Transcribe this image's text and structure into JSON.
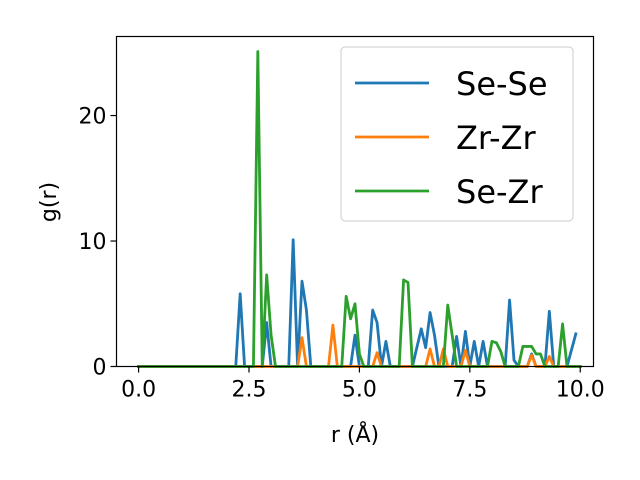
{
  "chart_data": {
    "type": "line",
    "title": "",
    "xlabel": "r (Å)",
    "ylabel": "g(r)",
    "xlim": [
      -0.5,
      10.3
    ],
    "ylim": [
      0,
      26.3
    ],
    "xticks": [
      0.0,
      2.5,
      5.0,
      7.5,
      10.0
    ],
    "xtick_labels": [
      "0.0",
      "2.5",
      "5.0",
      "7.5",
      "10.0"
    ],
    "yticks": [
      0,
      10,
      20
    ],
    "ytick_labels": [
      "0",
      "10",
      "20"
    ],
    "grid": false,
    "legend_position": "top-right",
    "series": [
      {
        "name": "Se-Se",
        "color": "#1f77b4",
        "points": [
          [
            0.0,
            0
          ],
          [
            2.2,
            0
          ],
          [
            2.3,
            5.8
          ],
          [
            2.4,
            0
          ],
          [
            2.8,
            0
          ],
          [
            2.9,
            3.5
          ],
          [
            3.0,
            0
          ],
          [
            3.4,
            0
          ],
          [
            3.5,
            10.1
          ],
          [
            3.6,
            0
          ],
          [
            3.7,
            6.8
          ],
          [
            3.8,
            4.5
          ],
          [
            3.9,
            0
          ],
          [
            4.8,
            0
          ],
          [
            4.9,
            2.5
          ],
          [
            5.0,
            0
          ],
          [
            5.2,
            0
          ],
          [
            5.3,
            4.5
          ],
          [
            5.4,
            3.5
          ],
          [
            5.5,
            0
          ],
          [
            5.6,
            2.0
          ],
          [
            5.7,
            0
          ],
          [
            6.2,
            0
          ],
          [
            6.4,
            3.0
          ],
          [
            6.5,
            1.5
          ],
          [
            6.6,
            4.3
          ],
          [
            6.7,
            2.5
          ],
          [
            6.8,
            0
          ],
          [
            7.1,
            0
          ],
          [
            7.2,
            2.4
          ],
          [
            7.3,
            0
          ],
          [
            7.4,
            2.8
          ],
          [
            7.5,
            0
          ],
          [
            7.6,
            2.0
          ],
          [
            7.7,
            0
          ],
          [
            7.8,
            2.0
          ],
          [
            7.9,
            0
          ],
          [
            8.3,
            0
          ],
          [
            8.4,
            5.3
          ],
          [
            8.5,
            0.5
          ],
          [
            8.6,
            0
          ],
          [
            8.8,
            0
          ],
          [
            8.9,
            1.0
          ],
          [
            9.0,
            0
          ],
          [
            9.2,
            0
          ],
          [
            9.3,
            4.4
          ],
          [
            9.4,
            0
          ],
          [
            9.7,
            0
          ],
          [
            9.9,
            2.6
          ]
        ]
      },
      {
        "name": "Zr-Zr",
        "color": "#ff7f0e",
        "points": [
          [
            0.0,
            0
          ],
          [
            3.6,
            0
          ],
          [
            3.7,
            2.3
          ],
          [
            3.8,
            0
          ],
          [
            4.3,
            0
          ],
          [
            4.4,
            3.3
          ],
          [
            4.5,
            0
          ],
          [
            5.3,
            0
          ],
          [
            5.4,
            1.1
          ],
          [
            5.5,
            0
          ],
          [
            6.5,
            0
          ],
          [
            6.6,
            1.4
          ],
          [
            6.7,
            0
          ],
          [
            6.8,
            0
          ],
          [
            6.9,
            1.4
          ],
          [
            7.0,
            0
          ],
          [
            7.3,
            0
          ],
          [
            7.4,
            1.3
          ],
          [
            7.5,
            0
          ],
          [
            8.8,
            0
          ],
          [
            8.9,
            0.9
          ],
          [
            9.0,
            0
          ],
          [
            9.2,
            0
          ],
          [
            9.3,
            0.8
          ],
          [
            9.4,
            0
          ],
          [
            10.0,
            0
          ]
        ]
      },
      {
        "name": "Se-Zr",
        "color": "#2ca02c",
        "points": [
          [
            0.0,
            0
          ],
          [
            2.6,
            0
          ],
          [
            2.7,
            25.1
          ],
          [
            2.8,
            0
          ],
          [
            2.9,
            7.3
          ],
          [
            3.0,
            2.5
          ],
          [
            3.1,
            0
          ],
          [
            4.6,
            0
          ],
          [
            4.7,
            5.6
          ],
          [
            4.8,
            3.8
          ],
          [
            4.9,
            5.0
          ],
          [
            5.0,
            1.0
          ],
          [
            5.1,
            0
          ],
          [
            5.9,
            0
          ],
          [
            6.0,
            6.9
          ],
          [
            6.1,
            6.7
          ],
          [
            6.2,
            0
          ],
          [
            6.9,
            0
          ],
          [
            7.0,
            4.9
          ],
          [
            7.1,
            2.5
          ],
          [
            7.2,
            0
          ],
          [
            7.9,
            0
          ],
          [
            8.0,
            2.0
          ],
          [
            8.1,
            1.9
          ],
          [
            8.2,
            1.2
          ],
          [
            8.3,
            0
          ],
          [
            8.6,
            0
          ],
          [
            8.7,
            1.6
          ],
          [
            8.9,
            1.6
          ],
          [
            9.0,
            1.0
          ],
          [
            9.1,
            1.0
          ],
          [
            9.2,
            0
          ],
          [
            9.5,
            0
          ],
          [
            9.6,
            3.4
          ],
          [
            9.7,
            0
          ],
          [
            10.0,
            0
          ]
        ]
      }
    ]
  }
}
